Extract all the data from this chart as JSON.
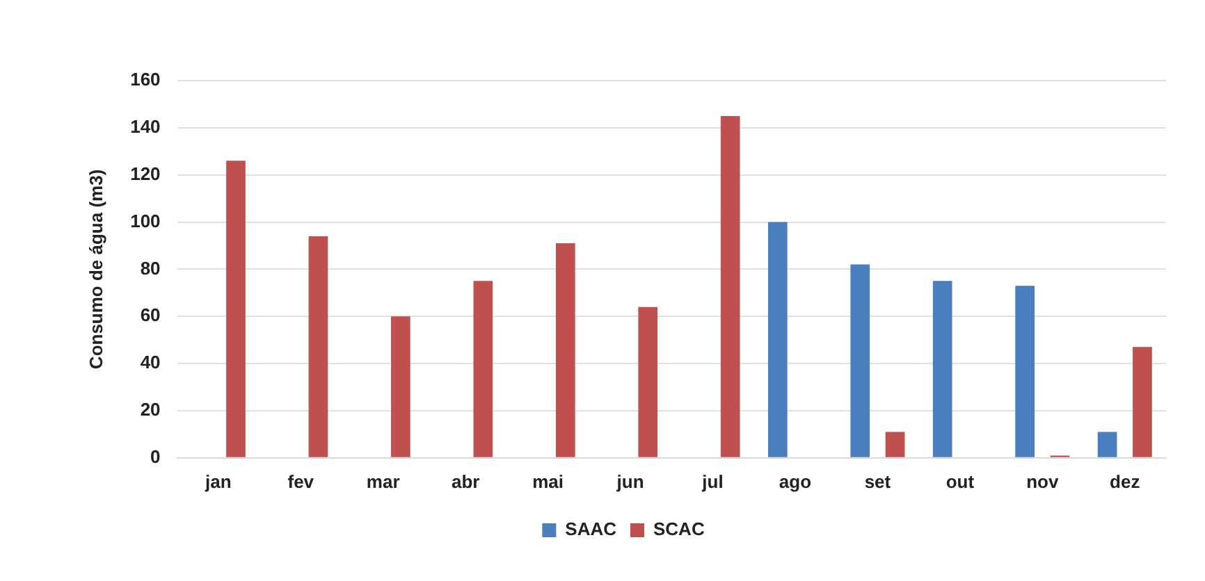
{
  "chart_data": {
    "type": "bar",
    "ylabel": "Consumo de água (m3)",
    "categories": [
      "jan",
      "fev",
      "mar",
      "abr",
      "mai",
      "jun",
      "jul",
      "ago",
      "set",
      "out",
      "nov",
      "dez"
    ],
    "series": [
      {
        "name": "SAAC",
        "color": "#4a7ebf",
        "values": [
          0,
          0,
          0,
          0,
          0,
          0,
          0,
          100,
          82,
          75,
          73,
          11
        ]
      },
      {
        "name": "SCAC",
        "color": "#c0504d",
        "values": [
          126,
          94,
          60,
          75,
          91,
          64,
          145,
          0,
          11,
          0,
          1,
          47
        ]
      }
    ],
    "ylim": [
      0,
      160
    ],
    "yticks": [
      0,
      20,
      40,
      60,
      80,
      100,
      120,
      140,
      160
    ],
    "grid": "y",
    "legend": "bottom"
  }
}
